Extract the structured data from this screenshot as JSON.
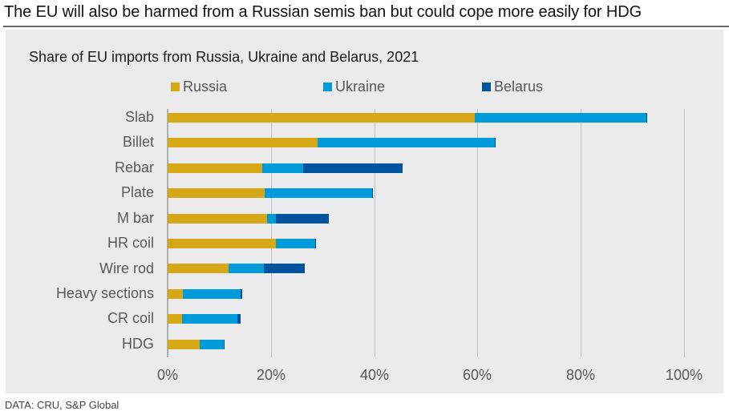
{
  "headline": "The EU will also be harmed from a Russian semis ban but could cope more easily for HDG",
  "source": "DATA: CRU, S&P Global",
  "colors": {
    "russia": "#d6a717",
    "ukraine": "#009bdb",
    "belarus": "#00539f",
    "panel": "#ebebeb",
    "grid": "#bfbfbf"
  },
  "chart_data": {
    "type": "bar",
    "orientation": "horizontal",
    "stacked": true,
    "title": "Share of EU imports from Russia, Ukraine and Belarus, 2021",
    "xlabel": "",
    "ylabel": "",
    "xlim": [
      0,
      100
    ],
    "x_unit": "%",
    "x_ticks": [
      "0%",
      "20%",
      "40%",
      "60%",
      "80%",
      "100%"
    ],
    "grid": true,
    "legend_position": "top",
    "legend": [
      "Russia",
      "Ukraine",
      "Belarus"
    ],
    "categories": [
      "Slab",
      "Billet",
      "Rebar",
      "Plate",
      "M bar",
      "HR coil",
      "Wire rod",
      "Heavy sections",
      "CR coil",
      "HDG"
    ],
    "series": [
      {
        "name": "Russia",
        "color": "#d6a717",
        "values": [
          59.5,
          29.1,
          18.3,
          18.8,
          19.3,
          20.9,
          11.8,
          2.9,
          2.8,
          6.2
        ]
      },
      {
        "name": "Ukraine",
        "color": "#009bdb",
        "values": [
          33.2,
          34.3,
          8.0,
          20.8,
          1.6,
          7.7,
          6.8,
          11.2,
          10.7,
          4.7
        ]
      },
      {
        "name": "Belarus",
        "color": "#00539f",
        "values": [
          0.2,
          0.1,
          19.2,
          0.2,
          10.3,
          0.2,
          8.0,
          0.3,
          0.7,
          0.2
        ]
      }
    ]
  }
}
